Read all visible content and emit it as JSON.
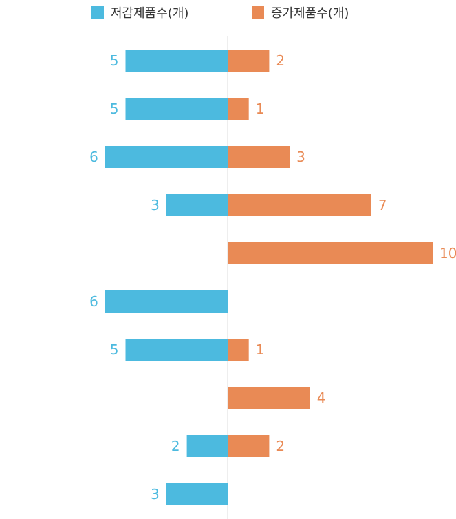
{
  "chart_data": {
    "type": "bar",
    "orientation": "horizontal-diverging",
    "series": [
      {
        "name": "저감제품수(개)",
        "color": "#4cbadf",
        "side": "left",
        "values": [
          5,
          5,
          6,
          3,
          null,
          6,
          5,
          null,
          2,
          3
        ]
      },
      {
        "name": "증가제품수(개)",
        "color": "#e98a55",
        "side": "right",
        "values": [
          2,
          1,
          3,
          7,
          10,
          null,
          1,
          4,
          2,
          null
        ]
      }
    ],
    "legend_position": "top",
    "grid": false,
    "xlim": [
      0,
      10
    ]
  }
}
